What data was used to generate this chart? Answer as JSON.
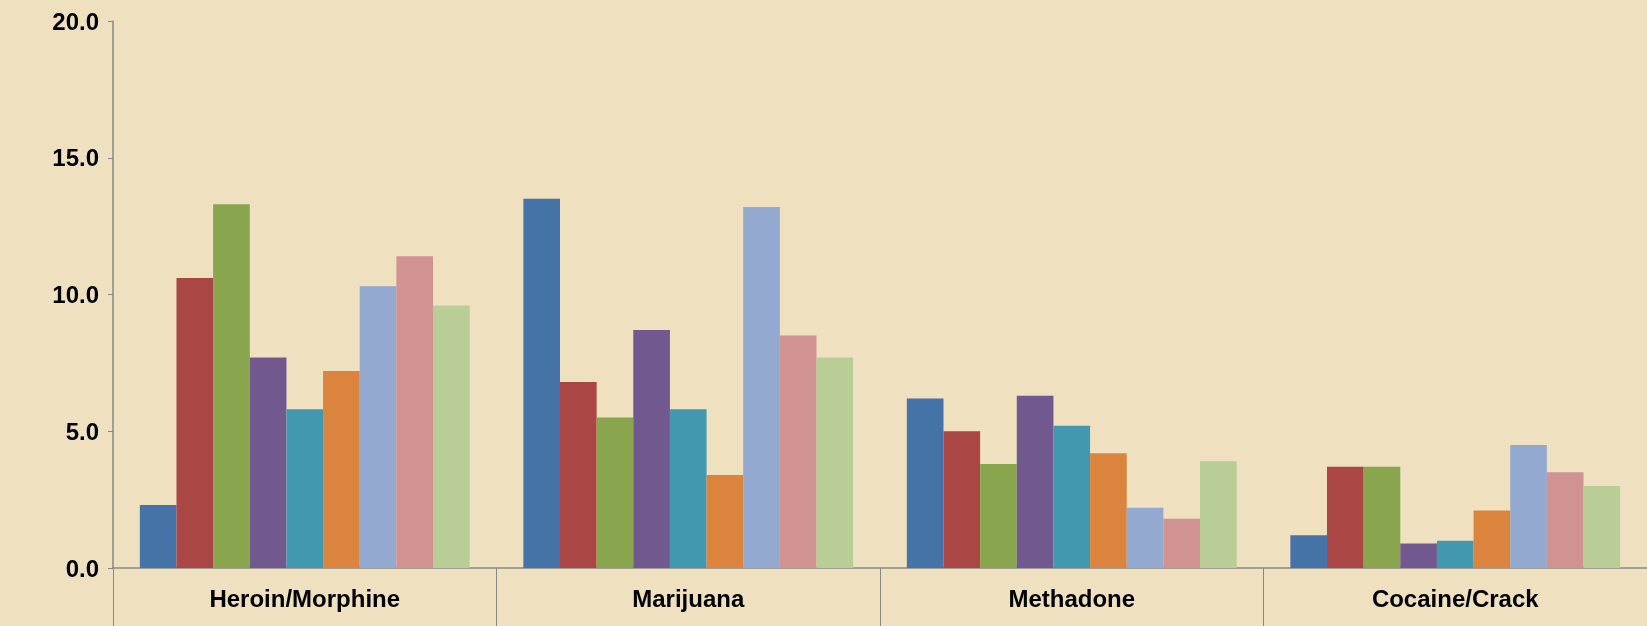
{
  "chart_data": {
    "type": "bar",
    "categories": [
      "Heroin/Morphine",
      "Marijuana",
      "Methadone",
      "Cocaine/Crack"
    ],
    "ylim": [
      0,
      20
    ],
    "yticks": [
      {
        "value": 0,
        "label": "0.0"
      },
      {
        "value": 5,
        "label": "5.0"
      },
      {
        "value": 10,
        "label": "10.0"
      },
      {
        "value": 15,
        "label": "15.0"
      },
      {
        "value": 20,
        "label": "20.0"
      }
    ],
    "grid": false,
    "series": [
      {
        "color": "#4572a7",
        "values": [
          2.3,
          13.5,
          6.2,
          1.2
        ]
      },
      {
        "color": "#aa4643",
        "values": [
          10.6,
          6.8,
          5.0,
          3.7
        ]
      },
      {
        "color": "#89a54e",
        "values": [
          13.3,
          5.5,
          3.8,
          3.7
        ]
      },
      {
        "color": "#71588f",
        "values": [
          7.7,
          8.7,
          6.3,
          0.9
        ]
      },
      {
        "color": "#4198af",
        "values": [
          5.8,
          5.8,
          5.2,
          1.0
        ]
      },
      {
        "color": "#db843d",
        "values": [
          7.2,
          3.4,
          4.2,
          2.1
        ]
      },
      {
        "color": "#93a9cf",
        "values": [
          10.3,
          13.2,
          2.2,
          4.5
        ]
      },
      {
        "color": "#d19392",
        "values": [
          11.4,
          8.5,
          1.8,
          3.5
        ]
      },
      {
        "color": "#b9cd96",
        "values": [
          9.6,
          7.7,
          3.9,
          3.0
        ]
      }
    ]
  }
}
